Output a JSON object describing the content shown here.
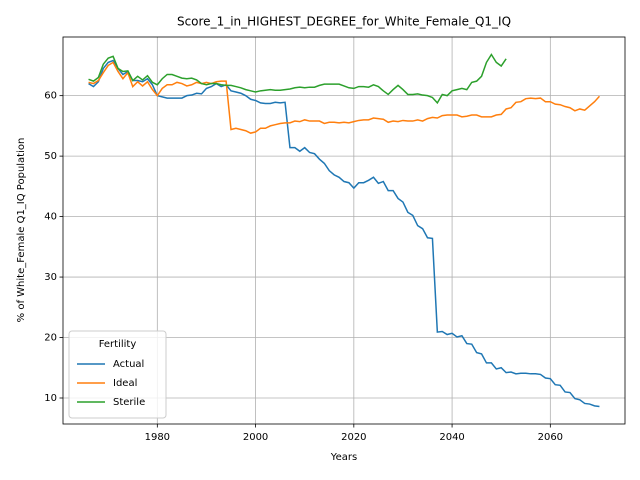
{
  "chart_data": {
    "type": "line",
    "title": "Score_1_in_HIGHEST_DEGREE_for_White_Female_Q1_IQ",
    "xlabel": "Years",
    "ylabel": "% of White_Female Q1_IQ Population",
    "legend_title": "Fertility",
    "legend": "lower left",
    "grid": true,
    "xlim": [
      1960.8,
      2075.2
    ],
    "ylim": [
      5.7,
      69.7
    ],
    "xticks": [
      1980,
      2000,
      2020,
      2040,
      2060
    ],
    "yticks": [
      10,
      20,
      30,
      40,
      50,
      60
    ],
    "x": [
      1966,
      1967,
      1968,
      1969,
      1970,
      1971,
      1972,
      1973,
      1974,
      1975,
      1976,
      1977,
      1978,
      1979,
      1980,
      1981,
      1982,
      1983,
      1984,
      1985,
      1986,
      1987,
      1988,
      1989,
      1990,
      1991,
      1992,
      1993,
      1994,
      1995,
      1996,
      1997,
      1998,
      1999,
      2000,
      2001,
      2002,
      2003,
      2004,
      2005,
      2006,
      2007,
      2008,
      2009,
      2010,
      2011,
      2012,
      2013,
      2014,
      2015,
      2016,
      2017,
      2018,
      2019,
      2020,
      2021,
      2022,
      2023,
      2024,
      2025,
      2026,
      2027,
      2028,
      2029,
      2030,
      2031,
      2032,
      2033,
      2034,
      2035,
      2036,
      2037,
      2038,
      2039,
      2040,
      2041,
      2042,
      2043,
      2044,
      2045,
      2046,
      2047,
      2048,
      2049,
      2050,
      2051,
      2052,
      2053,
      2054,
      2055,
      2056,
      2057,
      2058,
      2059,
      2060,
      2061,
      2062,
      2063,
      2064,
      2065,
      2066,
      2067,
      2068,
      2069,
      2070
    ],
    "series": [
      {
        "name": "Actual",
        "color": "#1f77b4",
        "values": [
          62.0,
          61.5,
          62.3,
          64.5,
          65.5,
          65.8,
          64.5,
          63.5,
          64.0,
          62.5,
          62.5,
          62.3,
          62.8,
          61.8,
          60.0,
          59.8,
          59.6,
          59.6,
          59.6,
          59.6,
          60.0,
          60.1,
          60.4,
          60.3,
          61.2,
          61.5,
          62.0,
          61.5,
          61.8,
          60.8,
          60.6,
          60.4,
          60.0,
          59.4,
          59.2,
          58.8,
          58.7,
          58.7,
          58.9,
          58.8,
          58.9,
          51.4,
          51.4,
          50.8,
          51.4,
          50.6,
          50.4,
          49.5,
          48.8,
          47.6,
          46.9,
          46.5,
          45.8,
          45.6,
          44.7,
          45.6,
          45.6,
          46.0,
          46.5,
          45.5,
          45.8,
          44.3,
          44.3,
          43.0,
          42.4,
          40.7,
          40.2,
          38.5,
          38.0,
          36.5,
          36.4,
          20.9,
          21.0,
          20.5,
          20.7,
          20.1,
          20.3,
          19.0,
          18.9,
          17.5,
          17.3,
          15.8,
          15.8,
          14.8,
          15.0,
          14.2,
          14.3,
          14.0,
          14.1,
          14.1,
          14.0,
          14.0,
          13.9,
          13.3,
          13.2,
          12.2,
          12.1,
          11.0,
          10.9,
          9.9,
          9.7,
          9.1,
          9.0,
          8.7,
          8.6
        ]
      },
      {
        "name": "Ideal",
        "color": "#ff7f0e",
        "values": [
          62.2,
          62.0,
          62.5,
          63.8,
          65.0,
          65.5,
          64.0,
          62.8,
          63.8,
          61.5,
          62.3,
          61.6,
          62.3,
          61.0,
          60.0,
          61.2,
          61.8,
          61.8,
          62.2,
          62.0,
          61.6,
          61.8,
          62.2,
          62.0,
          62.2,
          62.0,
          62.3,
          62.4,
          62.4,
          54.4,
          54.6,
          54.4,
          54.2,
          53.8,
          54.0,
          54.6,
          54.6,
          55.0,
          55.2,
          55.4,
          55.5,
          55.5,
          55.8,
          55.7,
          56.0,
          55.8,
          55.8,
          55.8,
          55.4,
          55.6,
          55.6,
          55.5,
          55.6,
          55.5,
          55.7,
          55.9,
          56.0,
          56.0,
          56.3,
          56.2,
          56.1,
          55.6,
          55.8,
          55.7,
          55.9,
          55.8,
          55.8,
          56.0,
          55.8,
          56.2,
          56.4,
          56.3,
          56.7,
          56.8,
          56.8,
          56.8,
          56.5,
          56.6,
          56.8,
          56.8,
          56.5,
          56.5,
          56.5,
          56.8,
          56.9,
          57.8,
          58.0,
          58.9,
          59.0,
          59.5,
          59.6,
          59.5,
          59.6,
          59.0,
          59.0,
          58.6,
          58.5,
          58.2,
          58.0,
          57.5,
          57.8,
          57.6,
          58.3,
          59.0,
          59.9
        ]
      },
      {
        "name": "Sterile",
        "color": "#2ca02c",
        "values": [
          62.7,
          62.4,
          63.0,
          65.2,
          66.2,
          66.5,
          64.5,
          64.0,
          64.1,
          62.5,
          63.2,
          62.6,
          63.3,
          62.2,
          61.8,
          62.8,
          63.5,
          63.5,
          63.2,
          62.9,
          62.8,
          62.9,
          62.6,
          62.0,
          61.8,
          62.0,
          62.0,
          61.8,
          61.7,
          61.7,
          61.5,
          61.3,
          61.0,
          60.8,
          60.6,
          60.8,
          60.9,
          61.0,
          60.9,
          60.9,
          61.0,
          61.1,
          61.3,
          61.4,
          61.3,
          61.4,
          61.4,
          61.7,
          61.9,
          61.9,
          61.9,
          61.9,
          61.6,
          61.3,
          61.2,
          61.5,
          61.5,
          61.4,
          61.8,
          61.5,
          60.8,
          60.2,
          61.0,
          61.7,
          61.0,
          60.2,
          60.2,
          60.3,
          60.1,
          60.0,
          59.7,
          58.8,
          60.2,
          60.0,
          60.8,
          61.0,
          61.2,
          61.0,
          62.2,
          62.4,
          63.2,
          65.5,
          66.8,
          65.5,
          64.9,
          66.1,
          null,
          null,
          null,
          null,
          null,
          null,
          null,
          null,
          null,
          null,
          null,
          null,
          null,
          null,
          null,
          null,
          null,
          null,
          null
        ]
      }
    ]
  }
}
